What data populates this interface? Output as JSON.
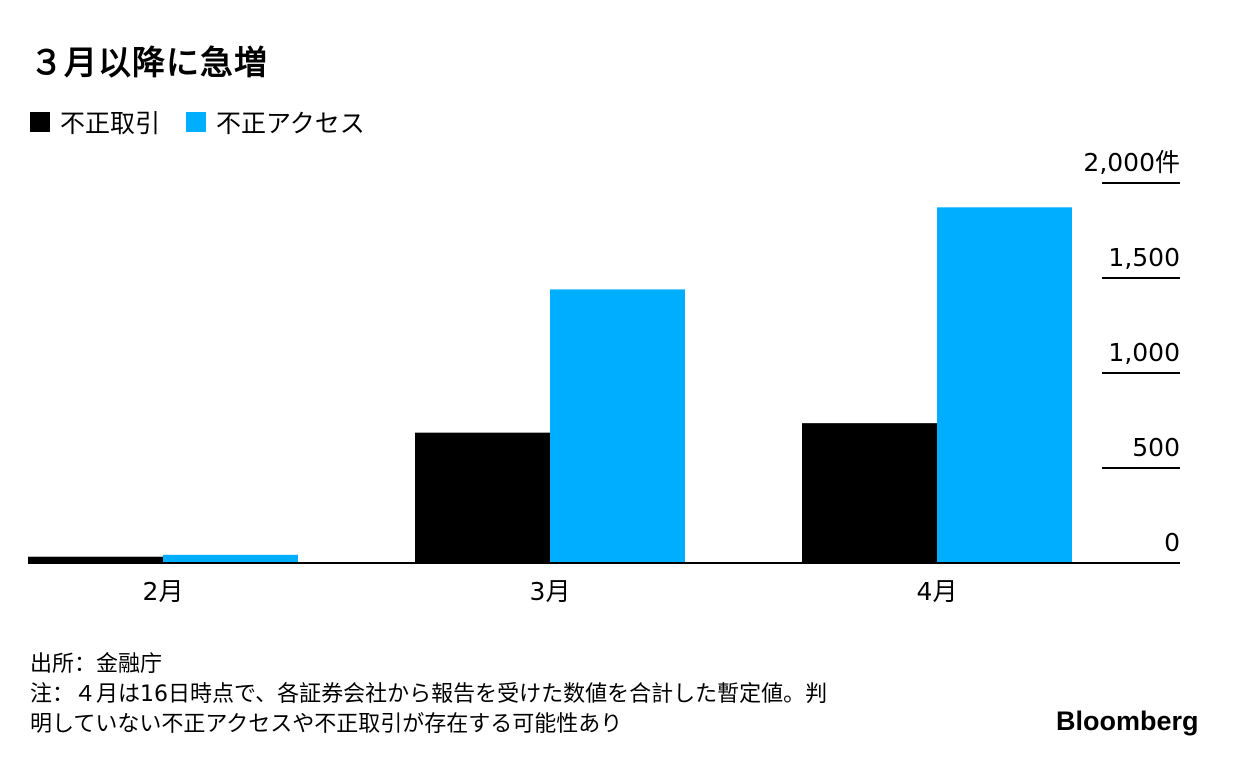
{
  "title": "３月以降に急増",
  "legend": [
    {
      "label": "不正取引",
      "color": "#000000"
    },
    {
      "label": "不正アクセス",
      "color": "#00aeff"
    }
  ],
  "chart_data": {
    "type": "bar",
    "categories": [
      "2月",
      "3月",
      "4月"
    ],
    "series": [
      {
        "name": "不正取引",
        "values": [
          33,
          686,
          736
        ]
      },
      {
        "name": "不正アクセス",
        "values": [
          43,
          1440,
          1872
        ]
      }
    ],
    "yticks": [
      "0",
      "500",
      "1,000",
      "1,500",
      "2,000件"
    ],
    "ytick_values": [
      0,
      500,
      1000,
      1500,
      2000
    ],
    "ylim": [
      0,
      2000
    ],
    "axis_side": "right",
    "grid": false
  },
  "source": "出所：金融庁",
  "note_lines": [
    "注：４月は16日時点で、各証券会社から報告を受けた数値を合計した暫定値。判",
    "明していない不正アクセスや不正取引が存在する可能性あり"
  ],
  "brand": "Bloomberg"
}
